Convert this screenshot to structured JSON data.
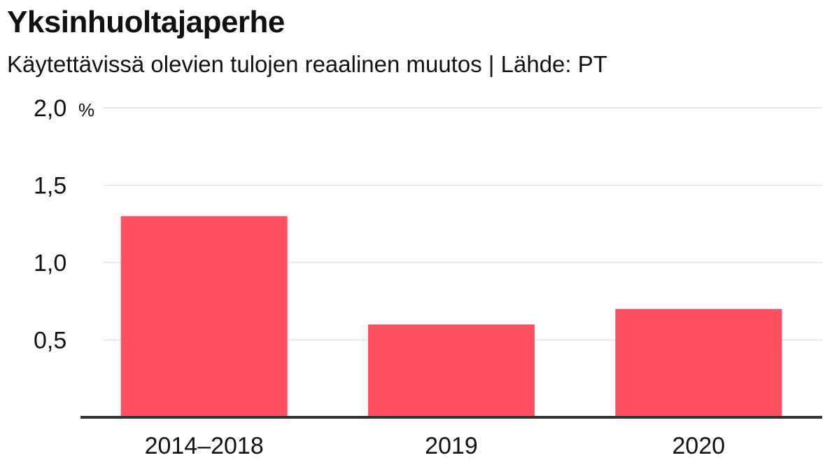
{
  "chart_data": {
    "type": "bar",
    "title": "Yksinhuoltajaperhe",
    "subtitle": "Käytettävissä olevien tulojen reaalinen muutos |  Lähde: PT",
    "categories": [
      "2014–2018",
      "2019",
      "2020"
    ],
    "values": [
      1.3,
      0.6,
      0.7
    ],
    "ylim": [
      0,
      2.0
    ],
    "yticks": [
      {
        "value": 0.5,
        "label": "0,5"
      },
      {
        "value": 1.0,
        "label": "1,0"
      },
      {
        "value": 1.5,
        "label": "1,5"
      },
      {
        "value": 2.0,
        "label": "2,0"
      }
    ],
    "y_unit": "%",
    "grid": true,
    "colors": {
      "bar": "#ff5061",
      "grid": "#e2e2e2",
      "axis": "#333333"
    }
  }
}
